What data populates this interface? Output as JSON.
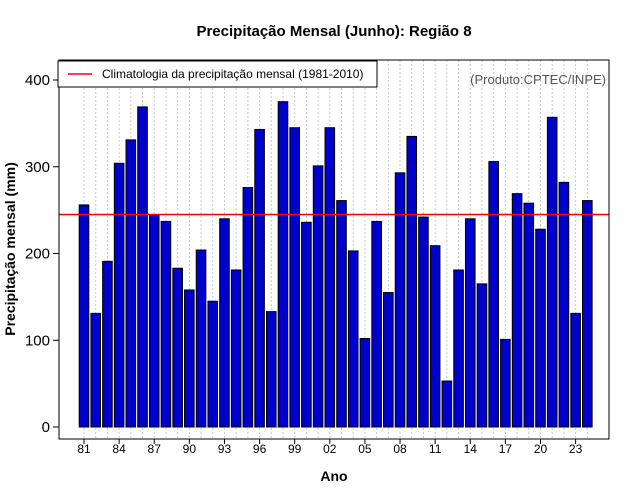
{
  "chart_data": {
    "type": "bar",
    "title": "Precipitação Mensal (Junho): Região 8",
    "xlabel": "Ano",
    "ylabel": "Precipitação mensal (mm)",
    "ylim": [
      0,
      420
    ],
    "yticks": [
      0,
      100,
      200,
      300,
      400
    ],
    "categories": [
      "1981",
      "1982",
      "1983",
      "1984",
      "1985",
      "1986",
      "1987",
      "1988",
      "1989",
      "1990",
      "1991",
      "1992",
      "1993",
      "1994",
      "1995",
      "1996",
      "1997",
      "1998",
      "1999",
      "2000",
      "2001",
      "2002",
      "2003",
      "2004",
      "2005",
      "2006",
      "2007",
      "2008",
      "2009",
      "2010",
      "2011",
      "2012",
      "2013",
      "2014",
      "2015",
      "2016",
      "2017",
      "2018",
      "2019",
      "2020",
      "2021",
      "2022",
      "2023",
      "2024"
    ],
    "xtick_labels": [
      "81",
      "84",
      "87",
      "90",
      "93",
      "96",
      "99",
      "02",
      "05",
      "08",
      "11",
      "14",
      "17",
      "20",
      "23"
    ],
    "xtick_every": 3,
    "values": [
      256,
      131,
      191,
      304,
      331,
      369,
      244,
      237,
      183,
      158,
      204,
      145,
      240,
      181,
      276,
      343,
      133,
      375,
      345,
      236,
      301,
      345,
      261,
      203,
      102,
      237,
      155,
      293,
      335,
      242,
      209,
      53,
      181,
      240,
      165,
      306,
      101,
      269,
      258,
      228,
      357,
      282,
      131,
      261
    ],
    "bar_color": "#0000cc",
    "climatology": {
      "label": "Climatologia da precipitação mensal (1981-2010)",
      "value": 245,
      "color": "#ff0000"
    },
    "legend_position": "top-left",
    "grid": "vertical dotted",
    "credit": "(Produto:CPTEC/INPE)"
  }
}
